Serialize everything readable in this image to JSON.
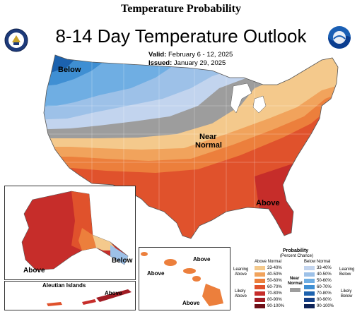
{
  "header": {
    "top_title": "Temperature Probability",
    "title": "8-14 Day Temperature Outlook",
    "valid_label": "Valid:",
    "valid_value": "February 6 - 12, 2025",
    "issued_label": "Issued:",
    "issued_value": "January 29, 2025"
  },
  "logos": {
    "left": "doc-seal-icon",
    "right": "noaa-logo-icon"
  },
  "map_labels": {
    "below_nw": "Below",
    "near_normal_1": "Near",
    "near_normal_2": "Normal",
    "above_se": "Above",
    "alaska_above": "Above",
    "alaska_below": "Below",
    "aleutian_title": "Aleutian Islands",
    "aleutian_above": "Above",
    "hawaii_above_1": "Above",
    "hawaii_above_2": "Above",
    "hawaii_above_3": "Above"
  },
  "legend": {
    "title": "Probability",
    "subtitle": "(Percent Chance)",
    "above_header": "Above Normal",
    "below_header": "Below Normal",
    "near_label": "Near",
    "near_label2": "Normal",
    "leaning_above": "Leaning",
    "leaning_above2": "Above",
    "likely_above": "Likely",
    "likely_above2": "Above",
    "leaning_below": "Leaning",
    "leaning_below2": "Below",
    "likely_below": "Likely",
    "likely_below2": "Below",
    "ranges": [
      "33-40%",
      "40-50%",
      "50-60%",
      "60-70%",
      "70-80%",
      "80-90%",
      "90-100%"
    ],
    "above_colors": [
      "#f4c98c",
      "#f1a35c",
      "#ec7f3c",
      "#e0522c",
      "#c62d2a",
      "#a11c24",
      "#6e0f18"
    ],
    "below_colors": [
      "#c2d4ee",
      "#9dc1e8",
      "#6faee3",
      "#3f8fd3",
      "#1c62ae",
      "#153f85",
      "#0e2458"
    ],
    "near_color": "#9d9d9d"
  }
}
